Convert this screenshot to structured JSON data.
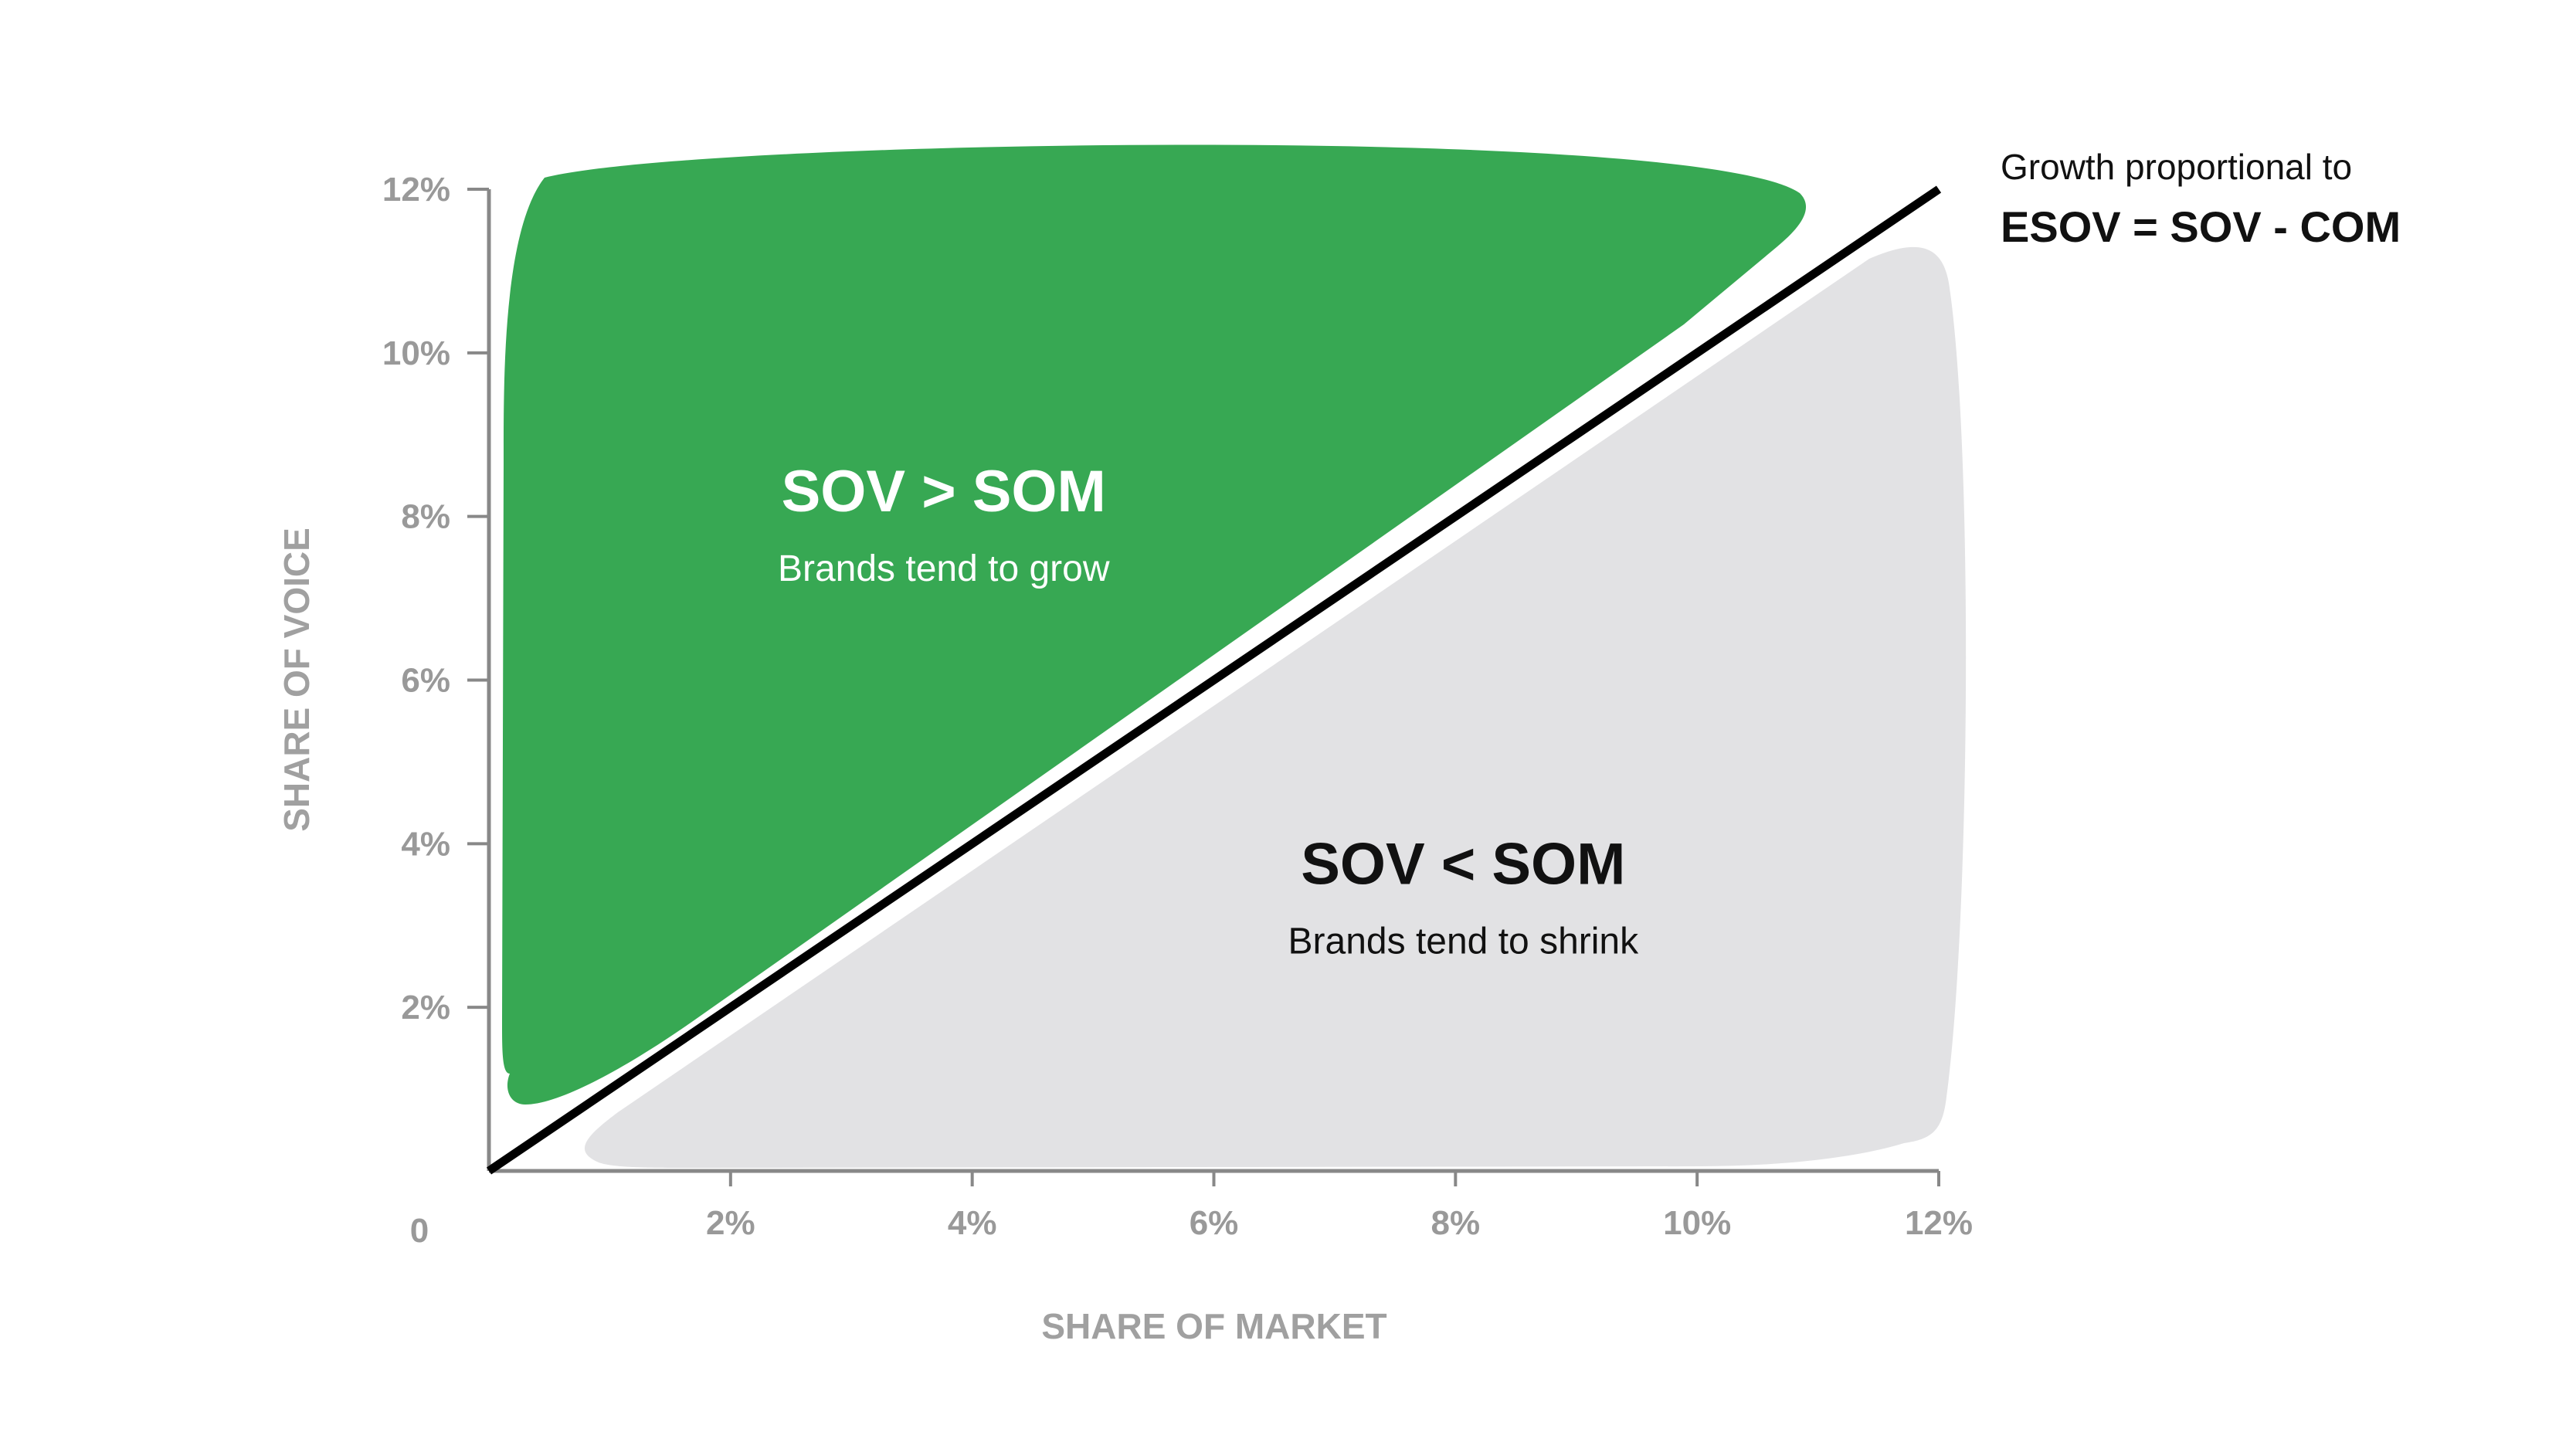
{
  "chart_data": {
    "type": "area",
    "xlabel": "SHARE OF MARKET",
    "ylabel": "SHARE OF VOICE",
    "xlim": [
      0,
      12
    ],
    "ylim": [
      0,
      12
    ],
    "origin_label": "0",
    "x_ticks": [
      "2%",
      "4%",
      "6%",
      "8%",
      "10%",
      "12%"
    ],
    "x_tick_values": [
      2,
      4,
      6,
      8,
      10,
      12
    ],
    "y_ticks": [
      "2%",
      "4%",
      "6%",
      "8%",
      "10%",
      "12%"
    ],
    "y_tick_values": [
      2,
      4,
      6,
      8,
      10,
      12
    ],
    "diagonal": {
      "x": [
        0,
        12
      ],
      "y": [
        0,
        12
      ]
    },
    "regions": {
      "above": {
        "title": "SOV > SOM",
        "subtitle": "Brands tend to grow",
        "color": "#37a853",
        "center": [
          3.7,
          8.3
        ]
      },
      "below": {
        "title": "SOV < SOM",
        "subtitle": "Brands tend to shrink",
        "color": "#e2e2e4",
        "center": [
          8.0,
          3.6
        ]
      }
    },
    "annotation": {
      "line1": "Growth proportional to",
      "line2": "ESOV = SOV - COM"
    },
    "colors": {
      "axis": "#888888",
      "tick_text": "#999999",
      "diagonal": "#000000"
    }
  }
}
